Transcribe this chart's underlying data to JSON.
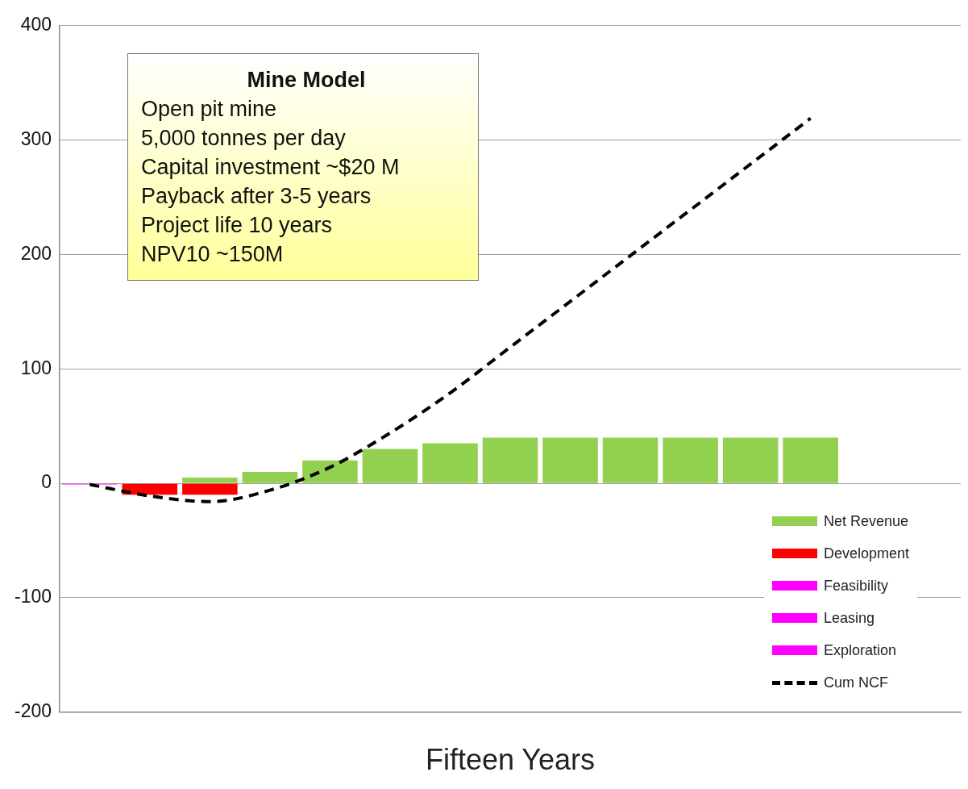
{
  "chart_data": {
    "type": "bar",
    "stacked": true,
    "xlabel": "Fifteen Years",
    "categories": [
      null,
      null,
      null,
      null,
      null,
      null,
      null,
      null,
      null,
      null,
      null,
      null,
      null,
      null,
      null
    ],
    "ylim": [
      -200,
      400
    ],
    "yticks": [
      -200,
      -100,
      0,
      100,
      200,
      300,
      400
    ],
    "grid": "y",
    "tick_labels": "y",
    "legend": "bottom right",
    "annotations": [
      "Mine Model",
      "Open pit mine",
      "5,000 tonnes per day",
      "Capital investment  ~$20 M",
      "Payback after 3-5 years",
      "Project life 10 years",
      "NPV10 ~150M"
    ],
    "series": [
      {
        "name": "Net Revenue",
        "color": "#92d050",
        "values": [
          null,
          null,
          5,
          10,
          20,
          30,
          35,
          40,
          40,
          40,
          40,
          40,
          40,
          null,
          null
        ]
      },
      {
        "name": "Development",
        "color": "#ff0000",
        "values": [
          null,
          -10,
          -10,
          null,
          null,
          null,
          null,
          null,
          null,
          null,
          null,
          null,
          null,
          null,
          null
        ]
      },
      {
        "name": "Feasibility",
        "color": "#ff00ff",
        "values": [
          null,
          null,
          null,
          null,
          null,
          null,
          null,
          null,
          null,
          null,
          null,
          null,
          null,
          null,
          null
        ]
      },
      {
        "name": "Leasing",
        "color": "#ff00ff",
        "values": [
          null,
          null,
          null,
          null,
          null,
          null,
          null,
          null,
          null,
          null,
          null,
          null,
          null,
          null,
          null
        ]
      },
      {
        "name": "Exploration",
        "color": "#ff00ff",
        "values": [
          -1,
          null,
          null,
          null,
          null,
          null,
          null,
          null,
          null,
          null,
          null,
          null,
          null,
          null,
          null
        ]
      },
      {
        "name": "Cum NCF",
        "type": "line",
        "line_style": "dashed",
        "color": "#000000",
        "values": [
          -1,
          -11,
          -16,
          -6,
          14,
          44,
          79,
          119,
          159,
          199,
          239,
          279,
          319,
          null,
          null
        ]
      }
    ]
  }
}
